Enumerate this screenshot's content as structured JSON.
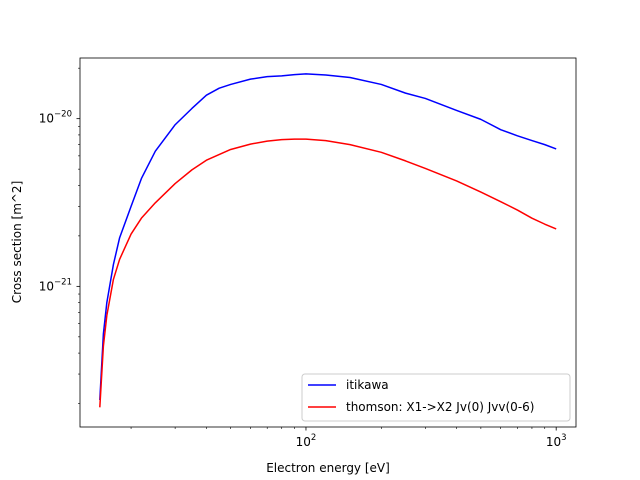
{
  "chart_data": {
    "type": "line",
    "title": "",
    "xlabel": "Electron energy [eV]",
    "ylabel": "Cross section [m^2]",
    "xscale": "log",
    "yscale": "log",
    "xlim": [
      12.5,
      1200
    ],
    "ylim": [
      1.45e-22,
      2.3e-20
    ],
    "x_ticks": [
      {
        "base": "10",
        "exp": "2",
        "value": 100
      },
      {
        "base": "10",
        "exp": "3",
        "value": 1000
      }
    ],
    "y_ticks": [
      {
        "base": "10",
        "exp": "−21",
        "value": 1e-21
      },
      {
        "base": "10",
        "exp": "−20",
        "value": 1e-20
      }
    ],
    "grid": false,
    "legend": "lower-right",
    "series": [
      {
        "name": "itikawa",
        "color": "#0000ff",
        "x": [
          15,
          15.5,
          16,
          17,
          18,
          20,
          22,
          25,
          30,
          35,
          40,
          45,
          50,
          60,
          70,
          80,
          90,
          100,
          120,
          150,
          200,
          250,
          300,
          400,
          500,
          600,
          700,
          800,
          900,
          1000
        ],
        "y": [
          2.1e-22,
          5.2e-22,
          8e-22,
          1.35e-21,
          1.95e-21,
          3e-21,
          4.4e-21,
          6.4e-21,
          9.2e-21,
          1.15e-20,
          1.38e-20,
          1.52e-20,
          1.6e-20,
          1.72e-20,
          1.78e-20,
          1.8e-20,
          1.83e-20,
          1.85e-20,
          1.82e-20,
          1.76e-20,
          1.6e-20,
          1.42e-20,
          1.32e-20,
          1.12e-20,
          9.9e-21,
          8.6e-21,
          7.9e-21,
          7.4e-21,
          7e-21,
          6.6e-21
        ]
      },
      {
        "name": "thomson: X1->X2 Jv(0) Jvv(0-6)",
        "color": "#ff0000",
        "x": [
          15,
          15.5,
          16,
          17,
          18,
          20,
          22,
          25,
          30,
          35,
          40,
          50,
          60,
          70,
          80,
          90,
          100,
          120,
          150,
          200,
          250,
          300,
          400,
          500,
          600,
          700,
          800,
          900,
          1000
        ],
        "y": [
          1.9e-22,
          4.4e-22,
          6.7e-22,
          1.1e-21,
          1.45e-21,
          2.05e-21,
          2.55e-21,
          3.15e-21,
          4.1e-21,
          4.95e-21,
          5.65e-21,
          6.55e-21,
          7.05e-21,
          7.35e-21,
          7.5e-21,
          7.55e-21,
          7.55e-21,
          7.4e-21,
          7e-21,
          6.3e-21,
          5.6e-21,
          5.05e-21,
          4.25e-21,
          3.65e-21,
          3.2e-21,
          2.85e-21,
          2.55e-21,
          2.35e-21,
          2.2e-21
        ]
      }
    ]
  }
}
